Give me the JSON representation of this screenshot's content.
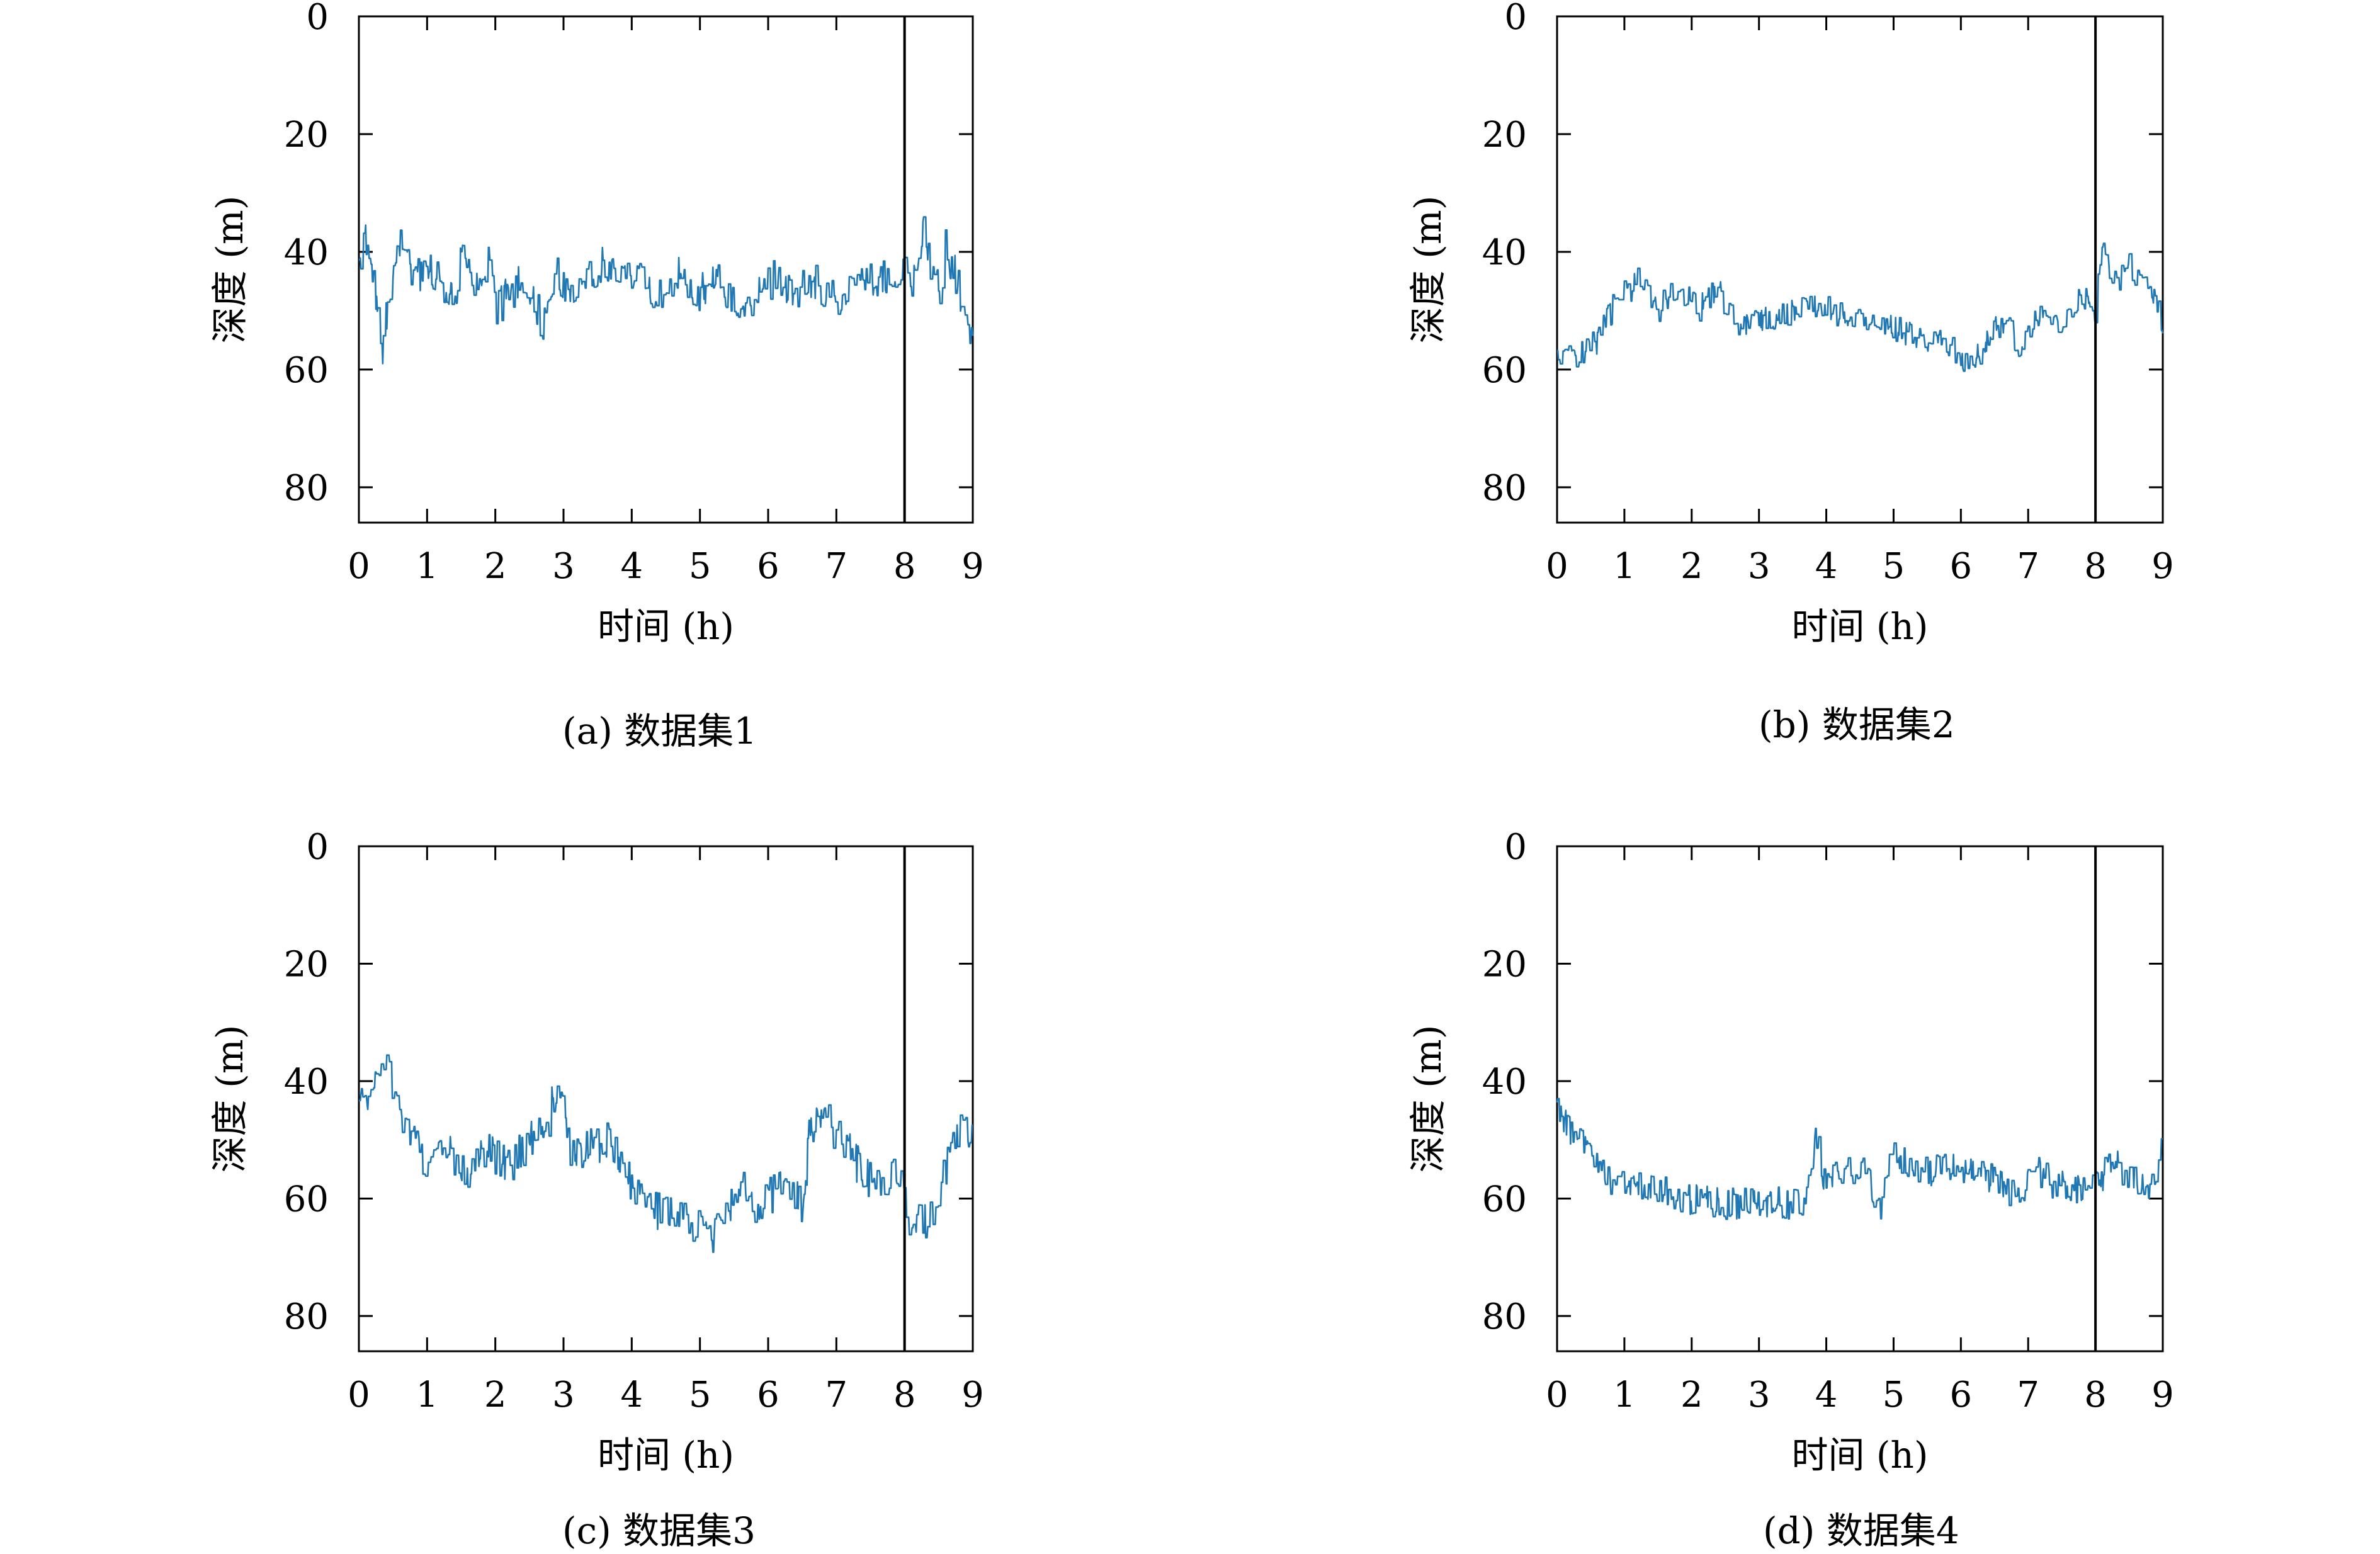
{
  "figure": {
    "captions": [
      "(a) 数据集1",
      "(b) 数据集2",
      "(c) 数据集3",
      "(d) 数据集4"
    ]
  },
  "style": {
    "series_color": "#1f77b4",
    "axis_color": "#000000",
    "marker_line_color": "#000000"
  },
  "chart_data": [
    {
      "type": "line",
      "xlabel": "时间 (h)",
      "ylabel": "深度 (m)",
      "xlim": [
        0,
        9
      ],
      "ylim": [
        86,
        0
      ],
      "x_ticks": [
        0,
        1,
        2,
        3,
        4,
        5,
        6,
        7,
        8,
        9
      ],
      "y_ticks": [
        0,
        20,
        40,
        60,
        80
      ],
      "y_inverted": true,
      "vertical_line_x": 8,
      "grid": false,
      "anchors": [
        [
          0,
          43
        ],
        [
          0.1,
          38
        ],
        [
          0.2,
          44
        ],
        [
          0.35,
          56
        ],
        [
          0.5,
          43
        ],
        [
          0.6,
          39
        ],
        [
          0.8,
          45
        ],
        [
          1.0,
          42
        ],
        [
          1.2,
          45
        ],
        [
          1.4,
          49
        ],
        [
          1.5,
          39
        ],
        [
          1.7,
          46
        ],
        [
          1.9,
          41
        ],
        [
          2.0,
          50
        ],
        [
          2.2,
          47
        ],
        [
          2.4,
          45
        ],
        [
          2.7,
          52
        ],
        [
          2.9,
          44
        ],
        [
          3.1,
          46
        ],
        [
          3.4,
          44
        ],
        [
          3.6,
          42
        ],
        [
          3.9,
          45
        ],
        [
          4.1,
          43
        ],
        [
          4.4,
          48
        ],
        [
          4.7,
          44
        ],
        [
          5.0,
          47
        ],
        [
          5.3,
          45
        ],
        [
          5.6,
          50
        ],
        [
          5.9,
          47
        ],
        [
          6.1,
          44
        ],
        [
          6.4,
          47
        ],
        [
          6.7,
          45
        ],
        [
          7.0,
          48
        ],
        [
          7.2,
          46
        ],
        [
          7.5,
          44
        ],
        [
          7.8,
          45
        ],
        [
          8.0,
          43
        ],
        [
          8.1,
          46
        ],
        [
          8.2,
          40
        ],
        [
          8.3,
          36
        ],
        [
          8.4,
          43
        ],
        [
          8.55,
          47
        ],
        [
          8.6,
          39
        ],
        [
          8.75,
          44
        ],
        [
          8.9,
          52
        ],
        [
          9.0,
          54
        ]
      ],
      "seed": 11,
      "noise": 3.2
    },
    {
      "type": "line",
      "xlabel": "时间 (h)",
      "ylabel": "深度 (m)",
      "xlim": [
        0,
        9
      ],
      "ylim": [
        86,
        0
      ],
      "x_ticks": [
        0,
        1,
        2,
        3,
        4,
        5,
        6,
        7,
        8,
        9
      ],
      "y_ticks": [
        0,
        20,
        40,
        60,
        80
      ],
      "y_inverted": true,
      "vertical_line_x": 8,
      "grid": false,
      "anchors": [
        [
          0,
          58
        ],
        [
          0.3,
          58
        ],
        [
          0.6,
          55
        ],
        [
          0.9,
          48
        ],
        [
          1.2,
          45
        ],
        [
          1.5,
          50
        ],
        [
          1.8,
          46
        ],
        [
          2.1,
          50
        ],
        [
          2.4,
          46
        ],
        [
          2.7,
          54
        ],
        [
          3.0,
          51
        ],
        [
          3.3,
          51
        ],
        [
          3.7,
          50
        ],
        [
          4.0,
          49
        ],
        [
          4.3,
          52
        ],
        [
          4.7,
          52
        ],
        [
          5.0,
          53
        ],
        [
          5.4,
          55
        ],
        [
          5.8,
          56
        ],
        [
          6.0,
          58
        ],
        [
          6.3,
          57
        ],
        [
          6.6,
          52
        ],
        [
          6.9,
          56
        ],
        [
          7.2,
          50
        ],
        [
          7.5,
          52
        ],
        [
          7.8,
          48
        ],
        [
          8.0,
          50
        ],
        [
          8.1,
          40
        ],
        [
          8.3,
          45
        ],
        [
          8.5,
          42
        ],
        [
          8.7,
          45
        ],
        [
          8.9,
          48
        ],
        [
          9.0,
          52
        ]
      ],
      "seed": 23,
      "noise": 2.4
    },
    {
      "type": "line",
      "xlabel": "时间 (h)",
      "ylabel": "深度 (m)",
      "xlim": [
        0,
        9
      ],
      "ylim": [
        86,
        0
      ],
      "x_ticks": [
        0,
        1,
        2,
        3,
        4,
        5,
        6,
        7,
        8,
        9
      ],
      "y_ticks": [
        0,
        20,
        40,
        60,
        80
      ],
      "y_inverted": true,
      "vertical_line_x": 8,
      "grid": false,
      "anchors": [
        [
          0,
          45
        ],
        [
          0.2,
          42
        ],
        [
          0.4,
          38
        ],
        [
          0.6,
          46
        ],
        [
          0.8,
          50
        ],
        [
          1.0,
          55
        ],
        [
          1.3,
          52
        ],
        [
          1.6,
          55
        ],
        [
          1.9,
          52
        ],
        [
          2.2,
          55
        ],
        [
          2.5,
          50
        ],
        [
          2.8,
          46
        ],
        [
          2.9,
          40
        ],
        [
          3.1,
          52
        ],
        [
          3.4,
          51
        ],
        [
          3.7,
          50
        ],
        [
          3.9,
          55
        ],
        [
          4.1,
          60
        ],
        [
          4.3,
          62
        ],
        [
          4.6,
          62
        ],
        [
          4.9,
          64
        ],
        [
          5.2,
          66
        ],
        [
          5.4,
          62
        ],
        [
          5.6,
          56
        ],
        [
          5.8,
          62
        ],
        [
          6.0,
          60
        ],
        [
          6.3,
          57
        ],
        [
          6.5,
          62
        ],
        [
          6.6,
          50
        ],
        [
          6.8,
          46
        ],
        [
          7.1,
          50
        ],
        [
          7.4,
          56
        ],
        [
          7.7,
          59
        ],
        [
          7.9,
          55
        ],
        [
          8.0,
          60
        ],
        [
          8.1,
          64
        ],
        [
          8.4,
          63
        ],
        [
          8.6,
          55
        ],
        [
          8.8,
          48
        ],
        [
          9.0,
          50
        ]
      ],
      "seed": 37,
      "noise": 3.4
    },
    {
      "type": "line",
      "xlabel": "时间 (h)",
      "ylabel": "深度 (m)",
      "xlim": [
        0,
        9
      ],
      "ylim": [
        86,
        0
      ],
      "x_ticks": [
        0,
        1,
        2,
        3,
        4,
        5,
        6,
        7,
        8,
        9
      ],
      "y_ticks": [
        0,
        20,
        40,
        60,
        80
      ],
      "y_inverted": true,
      "vertical_line_x": 8,
      "grid": false,
      "anchors": [
        [
          0,
          45
        ],
        [
          0.3,
          50
        ],
        [
          0.6,
          55
        ],
        [
          1.0,
          58
        ],
        [
          1.4,
          58
        ],
        [
          1.8,
          60
        ],
        [
          2.2,
          60
        ],
        [
          2.6,
          61
        ],
        [
          3.0,
          60
        ],
        [
          3.4,
          61
        ],
        [
          3.7,
          61
        ],
        [
          3.85,
          50
        ],
        [
          4.0,
          58
        ],
        [
          4.3,
          55
        ],
        [
          4.6,
          56
        ],
        [
          4.8,
          62
        ],
        [
          5.0,
          50
        ],
        [
          5.2,
          55
        ],
        [
          5.6,
          55
        ],
        [
          6.0,
          55
        ],
        [
          6.4,
          56
        ],
        [
          6.8,
          60
        ],
        [
          7.1,
          55
        ],
        [
          7.4,
          58
        ],
        [
          7.8,
          58
        ],
        [
          8.0,
          57
        ],
        [
          8.3,
          54
        ],
        [
          8.6,
          57
        ],
        [
          8.9,
          58
        ],
        [
          9.0,
          50
        ]
      ],
      "seed": 53,
      "noise": 2.8
    }
  ]
}
